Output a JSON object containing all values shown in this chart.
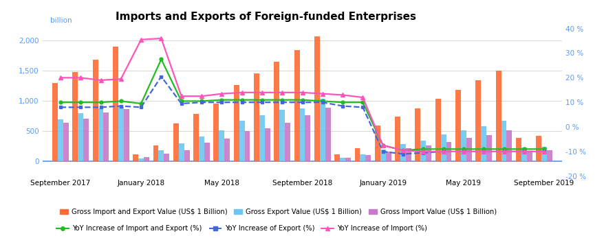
{
  "title": "Imports and Exports of Foreign-funded Enterprises",
  "x_labels": [
    "September 2017",
    "January 2018",
    "May 2018",
    "September 2018",
    "January 2019",
    "May 2019",
    "September 2019"
  ],
  "bar_orange": "#FF6B35",
  "bar_blue": "#6EC6F0",
  "bar_purple": "#C878C8",
  "line_green": "#22BB22",
  "line_blue": "#4466DD",
  "line_pink": "#FF55BB",
  "background_color": "#ffffff",
  "grid_color": "#d0d0d0",
  "tick_color": "#5599FF",
  "gross_total": [
    1300,
    1480,
    1680,
    1900,
    110,
    260,
    620,
    780,
    960,
    1260,
    1460,
    1650,
    1840,
    2070,
    115,
    220,
    590,
    740,
    870,
    1040,
    1185,
    1340,
    1505,
    380,
    420
  ],
  "gross_export": [
    690,
    790,
    875,
    895,
    42,
    180,
    295,
    410,
    510,
    670,
    765,
    855,
    870,
    1040,
    55,
    115,
    195,
    285,
    340,
    445,
    510,
    580,
    670,
    230,
    240
  ],
  "gross_import": [
    640,
    700,
    810,
    865,
    68,
    125,
    185,
    310,
    375,
    500,
    545,
    640,
    760,
    885,
    58,
    100,
    155,
    215,
    255,
    320,
    380,
    435,
    505,
    165,
    175
  ],
  "yoy_total": [
    10.0,
    10.0,
    10.0,
    10.5,
    9.5,
    27.5,
    10.5,
    10.5,
    11.0,
    11.0,
    11.0,
    11.0,
    11.0,
    10.5,
    10.0,
    10.0,
    -7.5,
    -9.5,
    -9.0,
    -9.0,
    -9.0,
    -9.0,
    -9.0,
    -9.0,
    -9.0
  ],
  "yoy_export": [
    8.0,
    8.0,
    8.0,
    8.5,
    8.0,
    20.5,
    9.5,
    10.0,
    10.0,
    10.0,
    10.0,
    10.0,
    10.0,
    10.0,
    8.5,
    8.0,
    -10.0,
    -11.0,
    -10.5,
    -10.0,
    -10.0,
    -10.0,
    -10.0,
    -10.0,
    -10.0
  ],
  "yoy_import": [
    20.0,
    20.0,
    19.0,
    19.5,
    35.5,
    36.0,
    12.5,
    12.5,
    13.5,
    14.0,
    14.0,
    14.0,
    14.0,
    13.5,
    13.0,
    12.0,
    -7.5,
    -9.5,
    -10.0,
    -10.0,
    -10.0,
    -10.0,
    -10.0,
    -10.0,
    -10.0
  ]
}
